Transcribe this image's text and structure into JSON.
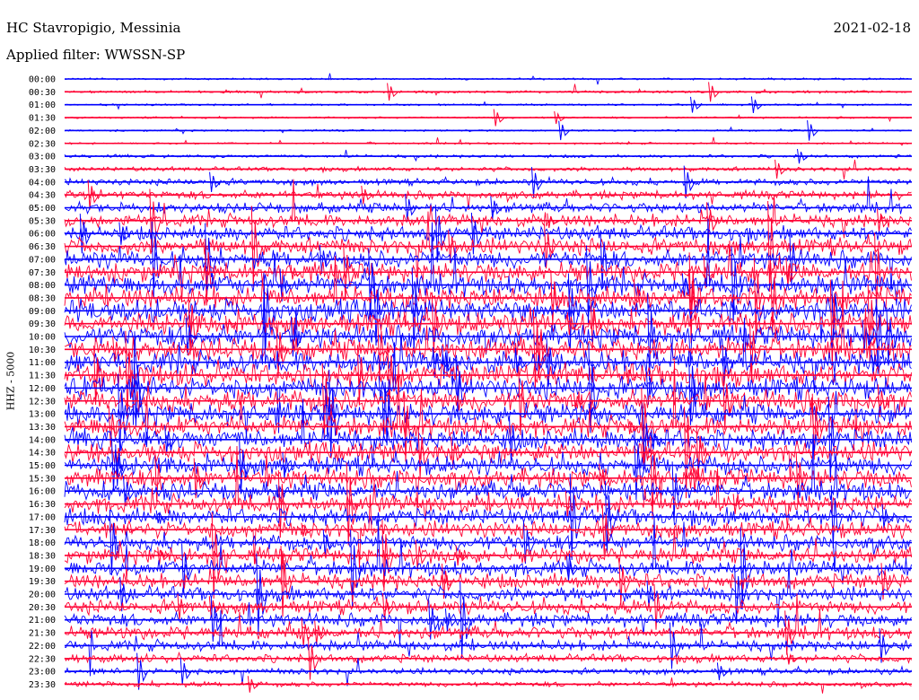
{
  "header": {
    "station": "HC Stavropigio, Messinia",
    "filter": "Applied filter: WWSSN-SP",
    "date": "2021-02-18"
  },
  "chart_data": {
    "type": "line",
    "title": "HC Stavropigio, Messinia",
    "subtitle": "Applied filter: WWSSN-SP",
    "date": "2021-02-18",
    "ylabel": "HHZ - 5000",
    "xlabel": "",
    "grid": false,
    "row_labels": [
      "00:00",
      "00:30",
      "01:00",
      "01:30",
      "02:00",
      "02:30",
      "03:00",
      "03:30",
      "04:00",
      "04:30",
      "05:00",
      "05:30",
      "06:00",
      "06:30",
      "07:00",
      "07:30",
      "08:00",
      "08:30",
      "09:00",
      "09:30",
      "10:00",
      "10:30",
      "11:00",
      "11:30",
      "12:00",
      "12:30",
      "13:00",
      "13:30",
      "14:00",
      "14:30",
      "15:00",
      "15:30",
      "16:00",
      "16:30",
      "17:00",
      "17:30",
      "18:00",
      "18:30",
      "19:00",
      "19:30",
      "20:00",
      "20:30",
      "21:00",
      "21:30",
      "22:00",
      "22:30",
      "23:00",
      "23:30"
    ],
    "series_colors": [
      "#0000ff",
      "#ff0033"
    ],
    "amplitude_by_row": [
      0.3,
      0.4,
      0.3,
      0.3,
      0.3,
      0.3,
      0.5,
      0.7,
      1.0,
      1.3,
      1.6,
      2.0,
      2.3,
      2.6,
      2.8,
      3.0,
      3.2,
      3.3,
      3.4,
      3.5,
      3.5,
      3.5,
      3.5,
      3.5,
      3.4,
      3.4,
      3.3,
      3.2,
      3.2,
      3.1,
      3.0,
      3.0,
      2.9,
      2.8,
      2.7,
      2.6,
      2.5,
      2.5,
      2.5,
      2.4,
      2.3,
      2.2,
      2.1,
      2.0,
      1.7,
      1.3,
      1.0,
      0.8
    ]
  }
}
